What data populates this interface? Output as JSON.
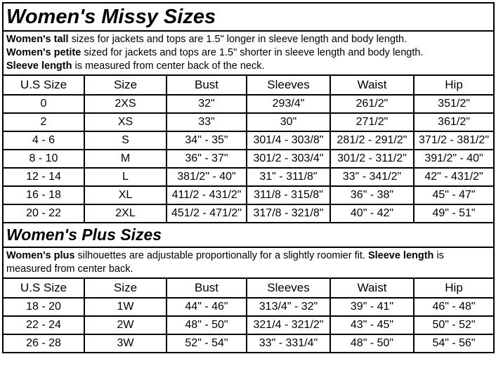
{
  "missy": {
    "title": "Women's Missy Sizes",
    "notes": [
      {
        "bold": "Women's tall",
        "text": " sizes for jackets and tops are 1.5\" longer in sleeve length and body length."
      },
      {
        "bold": "Women's petite",
        "text": " sized for jackets and tops are 1.5\" shorter in sleeve length and body length."
      },
      {
        "bold": "Sleeve length",
        "text": " is measured from center back of the neck."
      }
    ],
    "headers": [
      "U.S Size",
      "Size",
      "Bust",
      "Sleeves",
      "Waist",
      "Hip"
    ],
    "rows": [
      [
        "0",
        "2XS",
        "32\"",
        "293/4\"",
        "261/2\"",
        "351/2\""
      ],
      [
        "2",
        "XS",
        "33\"",
        "30\"",
        "271/2\"",
        "361/2\""
      ],
      [
        "4 - 6",
        "S",
        "34\" - 35\"",
        "301/4 - 303/8\"",
        "281/2 - 291/2\"",
        "371/2 - 381/2\""
      ],
      [
        "8 - 10",
        "M",
        "36\" - 37\"",
        "301/2 - 303/4\"",
        "301/2 - 311/2\"",
        "391/2\" - 40\""
      ],
      [
        "12 - 14",
        "L",
        "381/2\" - 40\"",
        "31\" - 311/8\"",
        "33\" - 341/2\"",
        "42\" - 431/2\""
      ],
      [
        "16 - 18",
        "XL",
        "411/2 - 431/2\"",
        "311/8 - 315/8\"",
        "36\" - 38\"",
        "45\" - 47\""
      ],
      [
        "20 - 22",
        "2XL",
        "451/2 - 471/2\"",
        "317/8 - 321/8\"",
        "40\" - 42\"",
        "49\" - 51\""
      ]
    ]
  },
  "plus": {
    "title": "Women's Plus Sizes",
    "note": {
      "bold1": "Women's plus",
      "text1": " silhouettes are adjustable proportionally for a slightly roomier fit. ",
      "bold2": "Sleeve length",
      "text2": " is measured from center back."
    },
    "headers": [
      "U.S Size",
      "Size",
      "Bust",
      "Sleeves",
      "Waist",
      "Hip"
    ],
    "rows": [
      [
        "18 - 20",
        "1W",
        "44\" - 46\"",
        "313/4\" - 32\"",
        "39\" - 41\"",
        "46\" - 48\""
      ],
      [
        "22 - 24",
        "2W",
        "48\" - 50\"",
        "321/4 - 321/2\"",
        "43\" - 45\"",
        "50\" - 52\""
      ],
      [
        "26 - 28",
        "3W",
        "52\" - 54\"",
        "33\" - 331/4\"",
        "48\" - 50\"",
        "54\" - 56\""
      ]
    ]
  }
}
